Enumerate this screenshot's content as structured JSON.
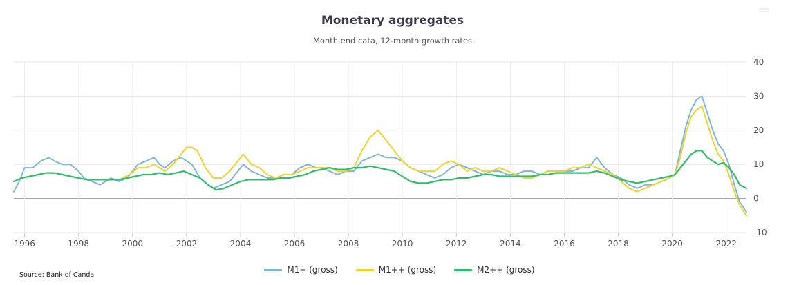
{
  "title": "Monetary aggregates",
  "subtitle": "Month end cata, 12-month growth rates",
  "source": "Source: Bank of Canda",
  "colors": {
    "m1_plus": "#7fb6d8",
    "m1_plusplus": "#f2d22e",
    "m2_plusplus": "#2ebd6b",
    "gridline": "#e6e6e6",
    "zeroline": "#999999",
    "axis_text": "#555555"
  },
  "chart_data": {
    "type": "line",
    "title": "Monetary aggregates",
    "subtitle": "Month end cata, 12-month growth rates",
    "xlabel": "",
    "ylabel": "",
    "xlim": [
      1995.6,
      2022.75
    ],
    "ylim": [
      -10,
      40
    ],
    "yticks": [
      "40",
      "30",
      "20",
      "10",
      "0",
      "-10"
    ],
    "yaxis_side": "right",
    "xticks": [
      "1996",
      "1998",
      "2000",
      "2002",
      "2004",
      "2006",
      "2008",
      "2010",
      "2012",
      "2014",
      "2016",
      "2018",
      "2020",
      "2022"
    ],
    "grid": true,
    "legend_position": "bottom-center",
    "series": [
      {
        "name": "M1+ (gross)",
        "color_key": "m1_plus",
        "x": [
          1995.6,
          1995.8,
          1996.0,
          1996.3,
          1996.6,
          1996.9,
          1997.1,
          1997.4,
          1997.7,
          1998.0,
          1998.2,
          1998.5,
          1998.8,
          1999.0,
          1999.2,
          1999.5,
          1999.8,
          2000.0,
          2000.2,
          2000.5,
          2000.8,
          2001.0,
          2001.2,
          2001.5,
          2001.8,
          2002.0,
          2002.2,
          2002.5,
          2002.8,
          2003.0,
          2003.3,
          2003.6,
          2003.9,
          2004.1,
          2004.4,
          2004.7,
          2005.0,
          2005.3,
          2005.6,
          2005.9,
          2006.2,
          2006.5,
          2006.8,
          2007.0,
          2007.3,
          2007.6,
          2007.9,
          2008.2,
          2008.5,
          2008.8,
          2009.1,
          2009.4,
          2009.7,
          2010.0,
          2010.3,
          2010.6,
          2010.9,
          2011.2,
          2011.5,
          2011.8,
          2012.1,
          2012.4,
          2012.7,
          2013.0,
          2013.3,
          2013.6,
          2013.9,
          2014.2,
          2014.5,
          2014.8,
          2015.1,
          2015.4,
          2015.7,
          2016.0,
          2016.3,
          2016.6,
          2016.9,
          2017.2,
          2017.5,
          2017.8,
          2018.1,
          2018.4,
          2018.7,
          2019.0,
          2019.3,
          2019.6,
          2019.9,
          2020.1,
          2020.3,
          2020.5,
          2020.7,
          2020.9,
          2021.1,
          2021.3,
          2021.5,
          2021.7,
          2021.9,
          2022.1,
          2022.3,
          2022.5,
          2022.75
        ],
        "values": [
          2,
          5,
          9,
          9,
          11,
          12,
          11,
          10,
          10,
          8,
          6,
          5,
          4,
          5,
          6,
          5,
          6,
          8,
          10,
          11,
          12,
          10,
          9,
          11,
          12,
          11,
          10,
          6,
          4,
          3,
          4,
          5,
          8,
          10,
          8,
          7,
          6,
          6,
          7,
          7,
          9,
          10,
          9,
          9,
          8,
          7,
          8,
          8,
          11,
          12,
          13,
          12,
          12,
          11,
          9,
          8,
          7,
          6,
          7,
          9,
          10,
          9,
          8,
          7,
          8,
          8,
          7,
          7,
          8,
          8,
          7,
          8,
          8,
          8,
          8,
          9,
          9,
          12,
          9,
          7,
          6,
          4,
          3,
          4,
          4,
          5,
          6,
          7,
          14,
          21,
          26,
          29,
          30,
          25,
          20,
          16,
          14,
          10,
          4,
          -1,
          -4
        ]
      },
      {
        "name": "M1++ (gross)",
        "color_key": "m1_plusplus",
        "x": [
          1999.6,
          1999.9,
          2000.2,
          2000.5,
          2000.8,
          2001.0,
          2001.2,
          2001.5,
          2001.8,
          2002.0,
          2002.2,
          2002.4,
          2002.7,
          2003.0,
          2003.3,
          2003.6,
          2003.9,
          2004.1,
          2004.4,
          2004.7,
          2005.0,
          2005.3,
          2005.6,
          2005.9,
          2006.2,
          2006.5,
          2006.8,
          2007.0,
          2007.3,
          2007.6,
          2007.9,
          2008.2,
          2008.5,
          2008.8,
          2009.1,
          2009.4,
          2009.7,
          2010.0,
          2010.3,
          2010.6,
          2010.9,
          2011.2,
          2011.5,
          2011.8,
          2012.1,
          2012.4,
          2012.7,
          2013.0,
          2013.3,
          2013.6,
          2013.9,
          2014.2,
          2014.5,
          2014.8,
          2015.1,
          2015.4,
          2015.7,
          2016.0,
          2016.3,
          2016.6,
          2016.9,
          2017.2,
          2017.5,
          2017.8,
          2018.1,
          2018.4,
          2018.7,
          2019.0,
          2019.3,
          2019.6,
          2019.9,
          2020.1,
          2020.3,
          2020.5,
          2020.7,
          2020.9,
          2021.1,
          2021.3,
          2021.5,
          2021.7,
          2021.9,
          2022.1,
          2022.3,
          2022.5,
          2022.75
        ],
        "values": [
          6,
          7,
          9,
          9,
          10,
          9,
          8,
          10,
          13,
          15,
          15,
          14,
          9,
          6,
          6,
          8,
          11,
          13,
          10,
          9,
          7,
          6,
          7,
          7,
          8,
          9,
          9,
          9,
          9,
          8,
          8,
          9,
          14,
          18,
          20,
          17,
          14,
          11,
          9,
          8,
          8,
          8,
          10,
          11,
          10,
          8,
          9,
          8,
          8,
          9,
          8,
          7,
          6,
          6,
          7,
          8,
          8,
          8,
          9,
          9,
          10,
          9,
          8,
          7,
          5,
          3,
          2,
          3,
          4,
          5,
          6,
          7,
          12,
          19,
          24,
          26,
          27,
          22,
          17,
          13,
          11,
          7,
          2,
          -2,
          -5
        ]
      },
      {
        "name": "M2++ (gross)",
        "color_key": "m2_plusplus",
        "x": [
          1995.6,
          1995.9,
          1996.2,
          1996.5,
          1996.8,
          1997.1,
          1997.4,
          1997.7,
          1998.0,
          1998.3,
          1998.6,
          1998.9,
          1999.2,
          1999.5,
          1999.8,
          2000.1,
          2000.4,
          2000.7,
          2001.0,
          2001.3,
          2001.6,
          2001.9,
          2002.2,
          2002.5,
          2002.8,
          2003.1,
          2003.4,
          2003.7,
          2004.0,
          2004.3,
          2004.6,
          2004.9,
          2005.2,
          2005.5,
          2005.8,
          2006.1,
          2006.4,
          2006.7,
          2007.0,
          2007.3,
          2007.6,
          2007.9,
          2008.2,
          2008.5,
          2008.8,
          2009.1,
          2009.4,
          2009.7,
          2010.0,
          2010.3,
          2010.6,
          2010.9,
          2011.2,
          2011.5,
          2011.8,
          2012.1,
          2012.4,
          2012.7,
          2013.0,
          2013.3,
          2013.6,
          2013.9,
          2014.2,
          2014.5,
          2014.8,
          2015.1,
          2015.4,
          2015.7,
          2016.0,
          2016.3,
          2016.6,
          2016.9,
          2017.2,
          2017.5,
          2017.8,
          2018.1,
          2018.4,
          2018.7,
          2019.0,
          2019.3,
          2019.6,
          2019.9,
          2020.1,
          2020.3,
          2020.5,
          2020.7,
          2020.9,
          2021.1,
          2021.3,
          2021.5,
          2021.7,
          2021.9,
          2022.1,
          2022.3,
          2022.5,
          2022.75
        ],
        "values": [
          5,
          6,
          6.5,
          7,
          7.5,
          7.5,
          7,
          6.5,
          6,
          5.5,
          5.5,
          5.5,
          5.5,
          5.5,
          6,
          6.5,
          7,
          7,
          7.5,
          7,
          7.5,
          8,
          7,
          6,
          4,
          2.5,
          3,
          4,
          5,
          5.5,
          5.5,
          5.5,
          5.5,
          6,
          6,
          6.5,
          7,
          8,
          8.5,
          9,
          8.5,
          8.5,
          9,
          9,
          9.5,
          9,
          8.5,
          8,
          6.5,
          5,
          4.5,
          4.5,
          5,
          5.5,
          5.5,
          6,
          6,
          6.5,
          7,
          7,
          6.5,
          6.5,
          6.5,
          6.5,
          6.5,
          7,
          7,
          7.5,
          7.5,
          7.5,
          7.5,
          7.5,
          8,
          7.5,
          6.5,
          5.5,
          5,
          4.5,
          5,
          5.5,
          6,
          6.5,
          7,
          9,
          11,
          13,
          14,
          14,
          12,
          11,
          10,
          10.5,
          9,
          7,
          4,
          3
        ]
      }
    ]
  }
}
